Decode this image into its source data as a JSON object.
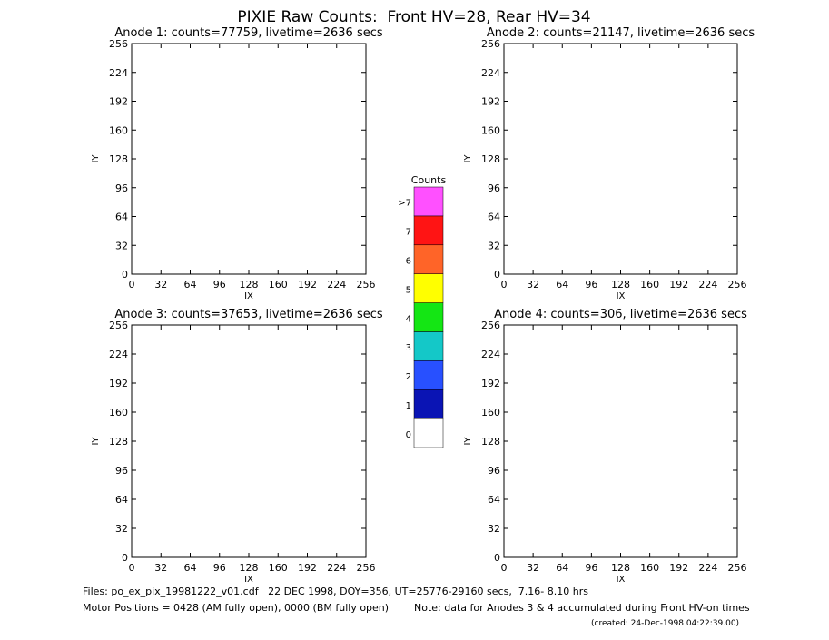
{
  "title": "PIXIE Raw Counts:  Front HV=28, Rear HV=34",
  "chart_data": [
    {
      "type": "heatmap",
      "title": "Anode 1: counts=77759, livetime=2636 secs",
      "x_label": "IX",
      "y_label": "IY",
      "xlim": [
        0,
        256
      ],
      "ylim": [
        0,
        256
      ],
      "xticks": [
        0,
        32,
        64,
        96,
        128,
        160,
        192,
        224,
        256
      ],
      "yticks": [
        0,
        32,
        64,
        96,
        128,
        160,
        192,
        224,
        256
      ]
    },
    {
      "type": "heatmap",
      "title": "Anode 2: counts=21147, livetime=2636 secs",
      "x_label": "IX",
      "y_label": "IY",
      "xlim": [
        0,
        256
      ],
      "ylim": [
        0,
        256
      ],
      "xticks": [
        0,
        32,
        64,
        96,
        128,
        160,
        192,
        224,
        256
      ],
      "yticks": [
        0,
        32,
        64,
        96,
        128,
        160,
        192,
        224,
        256
      ]
    },
    {
      "type": "heatmap",
      "title": "Anode 3: counts=37653, livetime=2636 secs",
      "x_label": "IX",
      "y_label": "IY",
      "xlim": [
        0,
        256
      ],
      "ylim": [
        0,
        256
      ],
      "xticks": [
        0,
        32,
        64,
        96,
        128,
        160,
        192,
        224,
        256
      ],
      "yticks": [
        0,
        32,
        64,
        96,
        128,
        160,
        192,
        224,
        256
      ]
    },
    {
      "type": "heatmap",
      "title": "Anode 4: counts=306, livetime=2636 secs",
      "x_label": "IX",
      "y_label": "IY",
      "xlim": [
        0,
        256
      ],
      "ylim": [
        0,
        256
      ],
      "xticks": [
        0,
        32,
        64,
        96,
        128,
        160,
        192,
        224,
        256
      ],
      "yticks": [
        0,
        32,
        64,
        96,
        128,
        160,
        192,
        224,
        256
      ]
    }
  ],
  "colorbar": {
    "title": "Counts",
    "levels": [
      {
        "label": "0",
        "color": "#ffffff"
      },
      {
        "label": "1",
        "color": "#0a14b4"
      },
      {
        "label": "2",
        "color": "#2850ff"
      },
      {
        "label": "3",
        "color": "#14c8c8"
      },
      {
        "label": "4",
        "color": "#14e614"
      },
      {
        "label": "5",
        "color": "#ffff00"
      },
      {
        "label": "6",
        "color": "#ff6428"
      },
      {
        "label": "7",
        "color": "#ff1414"
      },
      {
        "label": ">7",
        "color": "#ff50ff"
      }
    ]
  },
  "footer": {
    "files": "Files: po_ex_pix_19981222_v01.cdf   22 DEC 1998, DOY=356, UT=25776-29160 secs,  7.16- 8.10 hrs",
    "motor": "Motor Positions = 0428 (AM fully open), 0000 (BM fully open)",
    "note": "Note: data for Anodes 3 & 4 accumulated during Front HV-on times",
    "created": "(created: 24-Dec-1998 04:22:39.00)"
  }
}
